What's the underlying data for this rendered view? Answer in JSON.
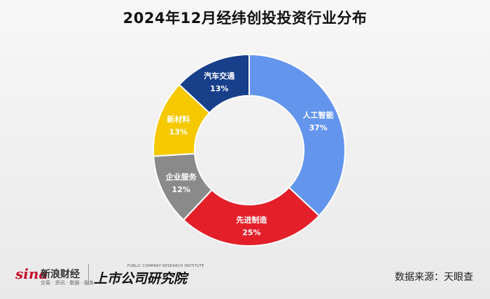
{
  "title": "2024年12月经纬创投投资行业分布",
  "chart_data": {
    "type": "pie",
    "donut": true,
    "title": "2024年12月经纬创投投资行业分布",
    "slices": [
      {
        "label": "人工智能",
        "value": 37,
        "value_label": "37%",
        "color": "#6495ed"
      },
      {
        "label": "先进制造",
        "value": 25,
        "value_label": "25%",
        "color": "#e3202a"
      },
      {
        "label": "企业服务",
        "value": 12,
        "value_label": "12%",
        "color": "#8a8a8a"
      },
      {
        "label": "新材料",
        "value": 13,
        "value_label": "13%",
        "color": "#f5c800"
      },
      {
        "label": "汽车交通",
        "value": 13,
        "value_label": "13%",
        "color": "#173f8a"
      }
    ],
    "legend": "none",
    "start": "top",
    "direction": "clockwise"
  },
  "footer": {
    "sina_word": "sina",
    "sina_name": "新浪财经",
    "sina_sub": "交易 · 资讯 · 数据 · 服务",
    "institute_en": "PUBLIC COMPANY RESEARCH INSTITUTE",
    "institute_cn": "上市公司研究院",
    "source": "数据来源：天眼查"
  }
}
